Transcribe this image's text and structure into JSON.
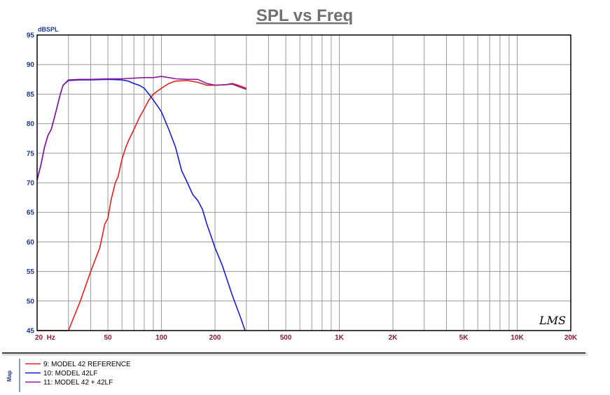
{
  "chart_data": {
    "type": "line",
    "title": "SPL vs Freq",
    "ylabel": "dBSPL",
    "xlabel": "",
    "x_scale": "log",
    "xlim": [
      20,
      20000
    ],
    "ylim": [
      45,
      95
    ],
    "grid": true,
    "legend_position": "bottom-left",
    "y_ticks": [
      {
        "v": 45,
        "label": "45"
      },
      {
        "v": 50,
        "label": "50"
      },
      {
        "v": 55,
        "label": "55"
      },
      {
        "v": 60,
        "label": "60"
      },
      {
        "v": 65,
        "label": "65"
      },
      {
        "v": 70,
        "label": "70"
      },
      {
        "v": 75,
        "label": "75"
      },
      {
        "v": 80,
        "label": "80"
      },
      {
        "v": 85,
        "label": "85"
      },
      {
        "v": 90,
        "label": "90"
      },
      {
        "v": 95,
        "label": "95"
      }
    ],
    "x_ticks": [
      {
        "v": 20,
        "label": "20  Hz"
      },
      {
        "v": 50,
        "label": "50"
      },
      {
        "v": 100,
        "label": "100"
      },
      {
        "v": 200,
        "label": "200"
      },
      {
        "v": 500,
        "label": "500"
      },
      {
        "v": 1000,
        "label": "1K"
      },
      {
        "v": 2000,
        "label": "2K"
      },
      {
        "v": 5000,
        "label": "5K"
      },
      {
        "v": 10000,
        "label": "10K"
      },
      {
        "v": 20000,
        "label": "20K"
      }
    ],
    "series": [
      {
        "name": "9: MODEL 42 REFERENCE",
        "color": "#e02020",
        "points": [
          [
            20,
            45
          ],
          [
            30,
            45
          ],
          [
            35,
            50
          ],
          [
            40,
            55
          ],
          [
            45,
            59
          ],
          [
            48,
            63
          ],
          [
            50,
            64
          ],
          [
            52,
            67
          ],
          [
            55,
            70
          ],
          [
            57,
            71
          ],
          [
            60,
            74
          ],
          [
            63,
            76
          ],
          [
            65,
            77
          ],
          [
            70,
            79
          ],
          [
            75,
            81
          ],
          [
            80,
            82.5
          ],
          [
            85,
            84
          ],
          [
            90,
            85
          ],
          [
            100,
            86
          ],
          [
            110,
            86.8
          ],
          [
            120,
            87.2
          ],
          [
            140,
            87.3
          ],
          [
            160,
            87
          ],
          [
            180,
            86.5
          ],
          [
            200,
            86.5
          ],
          [
            230,
            86.6
          ],
          [
            250,
            86.8
          ],
          [
            270,
            86.5
          ],
          [
            300,
            86
          ]
        ]
      },
      {
        "name": "10: MODEL 42LF",
        "color": "#1a1acc",
        "points": [
          [
            20,
            70.5
          ],
          [
            21,
            73
          ],
          [
            22,
            76
          ],
          [
            23,
            78
          ],
          [
            24,
            79
          ],
          [
            25,
            81
          ],
          [
            26,
            83
          ],
          [
            27,
            85
          ],
          [
            28,
            86.5
          ],
          [
            30,
            87.3
          ],
          [
            35,
            87.4
          ],
          [
            40,
            87.4
          ],
          [
            50,
            87.5
          ],
          [
            60,
            87.4
          ],
          [
            65,
            87.2
          ],
          [
            70,
            86.8
          ],
          [
            75,
            86.5
          ],
          [
            80,
            86
          ],
          [
            85,
            85
          ],
          [
            90,
            84
          ],
          [
            95,
            83
          ],
          [
            100,
            82
          ],
          [
            110,
            79
          ],
          [
            120,
            76
          ],
          [
            130,
            72
          ],
          [
            140,
            70
          ],
          [
            150,
            68
          ],
          [
            160,
            67
          ],
          [
            170,
            65.5
          ],
          [
            180,
            63
          ],
          [
            190,
            61
          ],
          [
            200,
            59
          ],
          [
            220,
            56
          ],
          [
            250,
            51
          ],
          [
            280,
            47
          ],
          [
            295,
            45
          ]
        ]
      },
      {
        "name": "11: MODEL 42 + 42LF",
        "color": "#8a1a9a",
        "points": [
          [
            20,
            70.5
          ],
          [
            21,
            73
          ],
          [
            22,
            76
          ],
          [
            23,
            78
          ],
          [
            24,
            79
          ],
          [
            25,
            81
          ],
          [
            26,
            83
          ],
          [
            27,
            85
          ],
          [
            28,
            86.5
          ],
          [
            30,
            87.4
          ],
          [
            35,
            87.5
          ],
          [
            40,
            87.5
          ],
          [
            50,
            87.6
          ],
          [
            60,
            87.6
          ],
          [
            70,
            87.7
          ],
          [
            80,
            87.8
          ],
          [
            90,
            87.8
          ],
          [
            100,
            88
          ],
          [
            110,
            87.8
          ],
          [
            120,
            87.6
          ],
          [
            140,
            87.5
          ],
          [
            160,
            87.5
          ],
          [
            180,
            86.8
          ],
          [
            200,
            86.5
          ],
          [
            230,
            86.6
          ],
          [
            250,
            86.7
          ],
          [
            270,
            86.3
          ],
          [
            300,
            85.8
          ]
        ]
      }
    ]
  },
  "legend": {
    "side_label": "Map",
    "items": [
      {
        "label": "9: MODEL 42 REFERENCE",
        "color": "#e02020"
      },
      {
        "label": "10: MODEL 42LF",
        "color": "#1a1acc"
      },
      {
        "label": "11: MODEL 42 + 42LF",
        "color": "#8a1a9a"
      }
    ]
  },
  "watermark": "LMS"
}
